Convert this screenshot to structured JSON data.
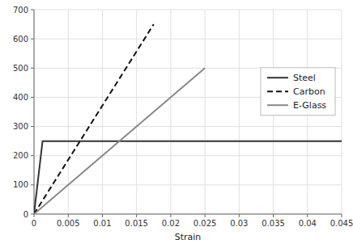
{
  "chart_data": {
    "type": "line",
    "xlabel": "Strain",
    "xlim": [
      0,
      0.045
    ],
    "ylim": [
      0,
      700
    ],
    "xticks": [
      0,
      0.005,
      0.01,
      0.015,
      0.02,
      0.025,
      0.03,
      0.035,
      0.04,
      0.045
    ],
    "yticks": [
      0,
      100,
      200,
      300,
      400,
      500,
      600,
      700
    ],
    "grid": true,
    "legend": "right",
    "series": [
      {
        "name": "Steel",
        "color": "#333333",
        "line_style": "solid",
        "x": [
          0,
          0.00125,
          0.045
        ],
        "values": [
          0,
          250,
          250
        ]
      },
      {
        "name": "Carbon",
        "color": "#111111",
        "line_style": "dashed",
        "x": [
          0,
          0.0175
        ],
        "values": [
          0,
          650
        ]
      },
      {
        "name": "E-Glass",
        "color": "#888888",
        "line_style": "solid",
        "x": [
          0,
          0.025
        ],
        "values": [
          0,
          500
        ]
      }
    ]
  }
}
